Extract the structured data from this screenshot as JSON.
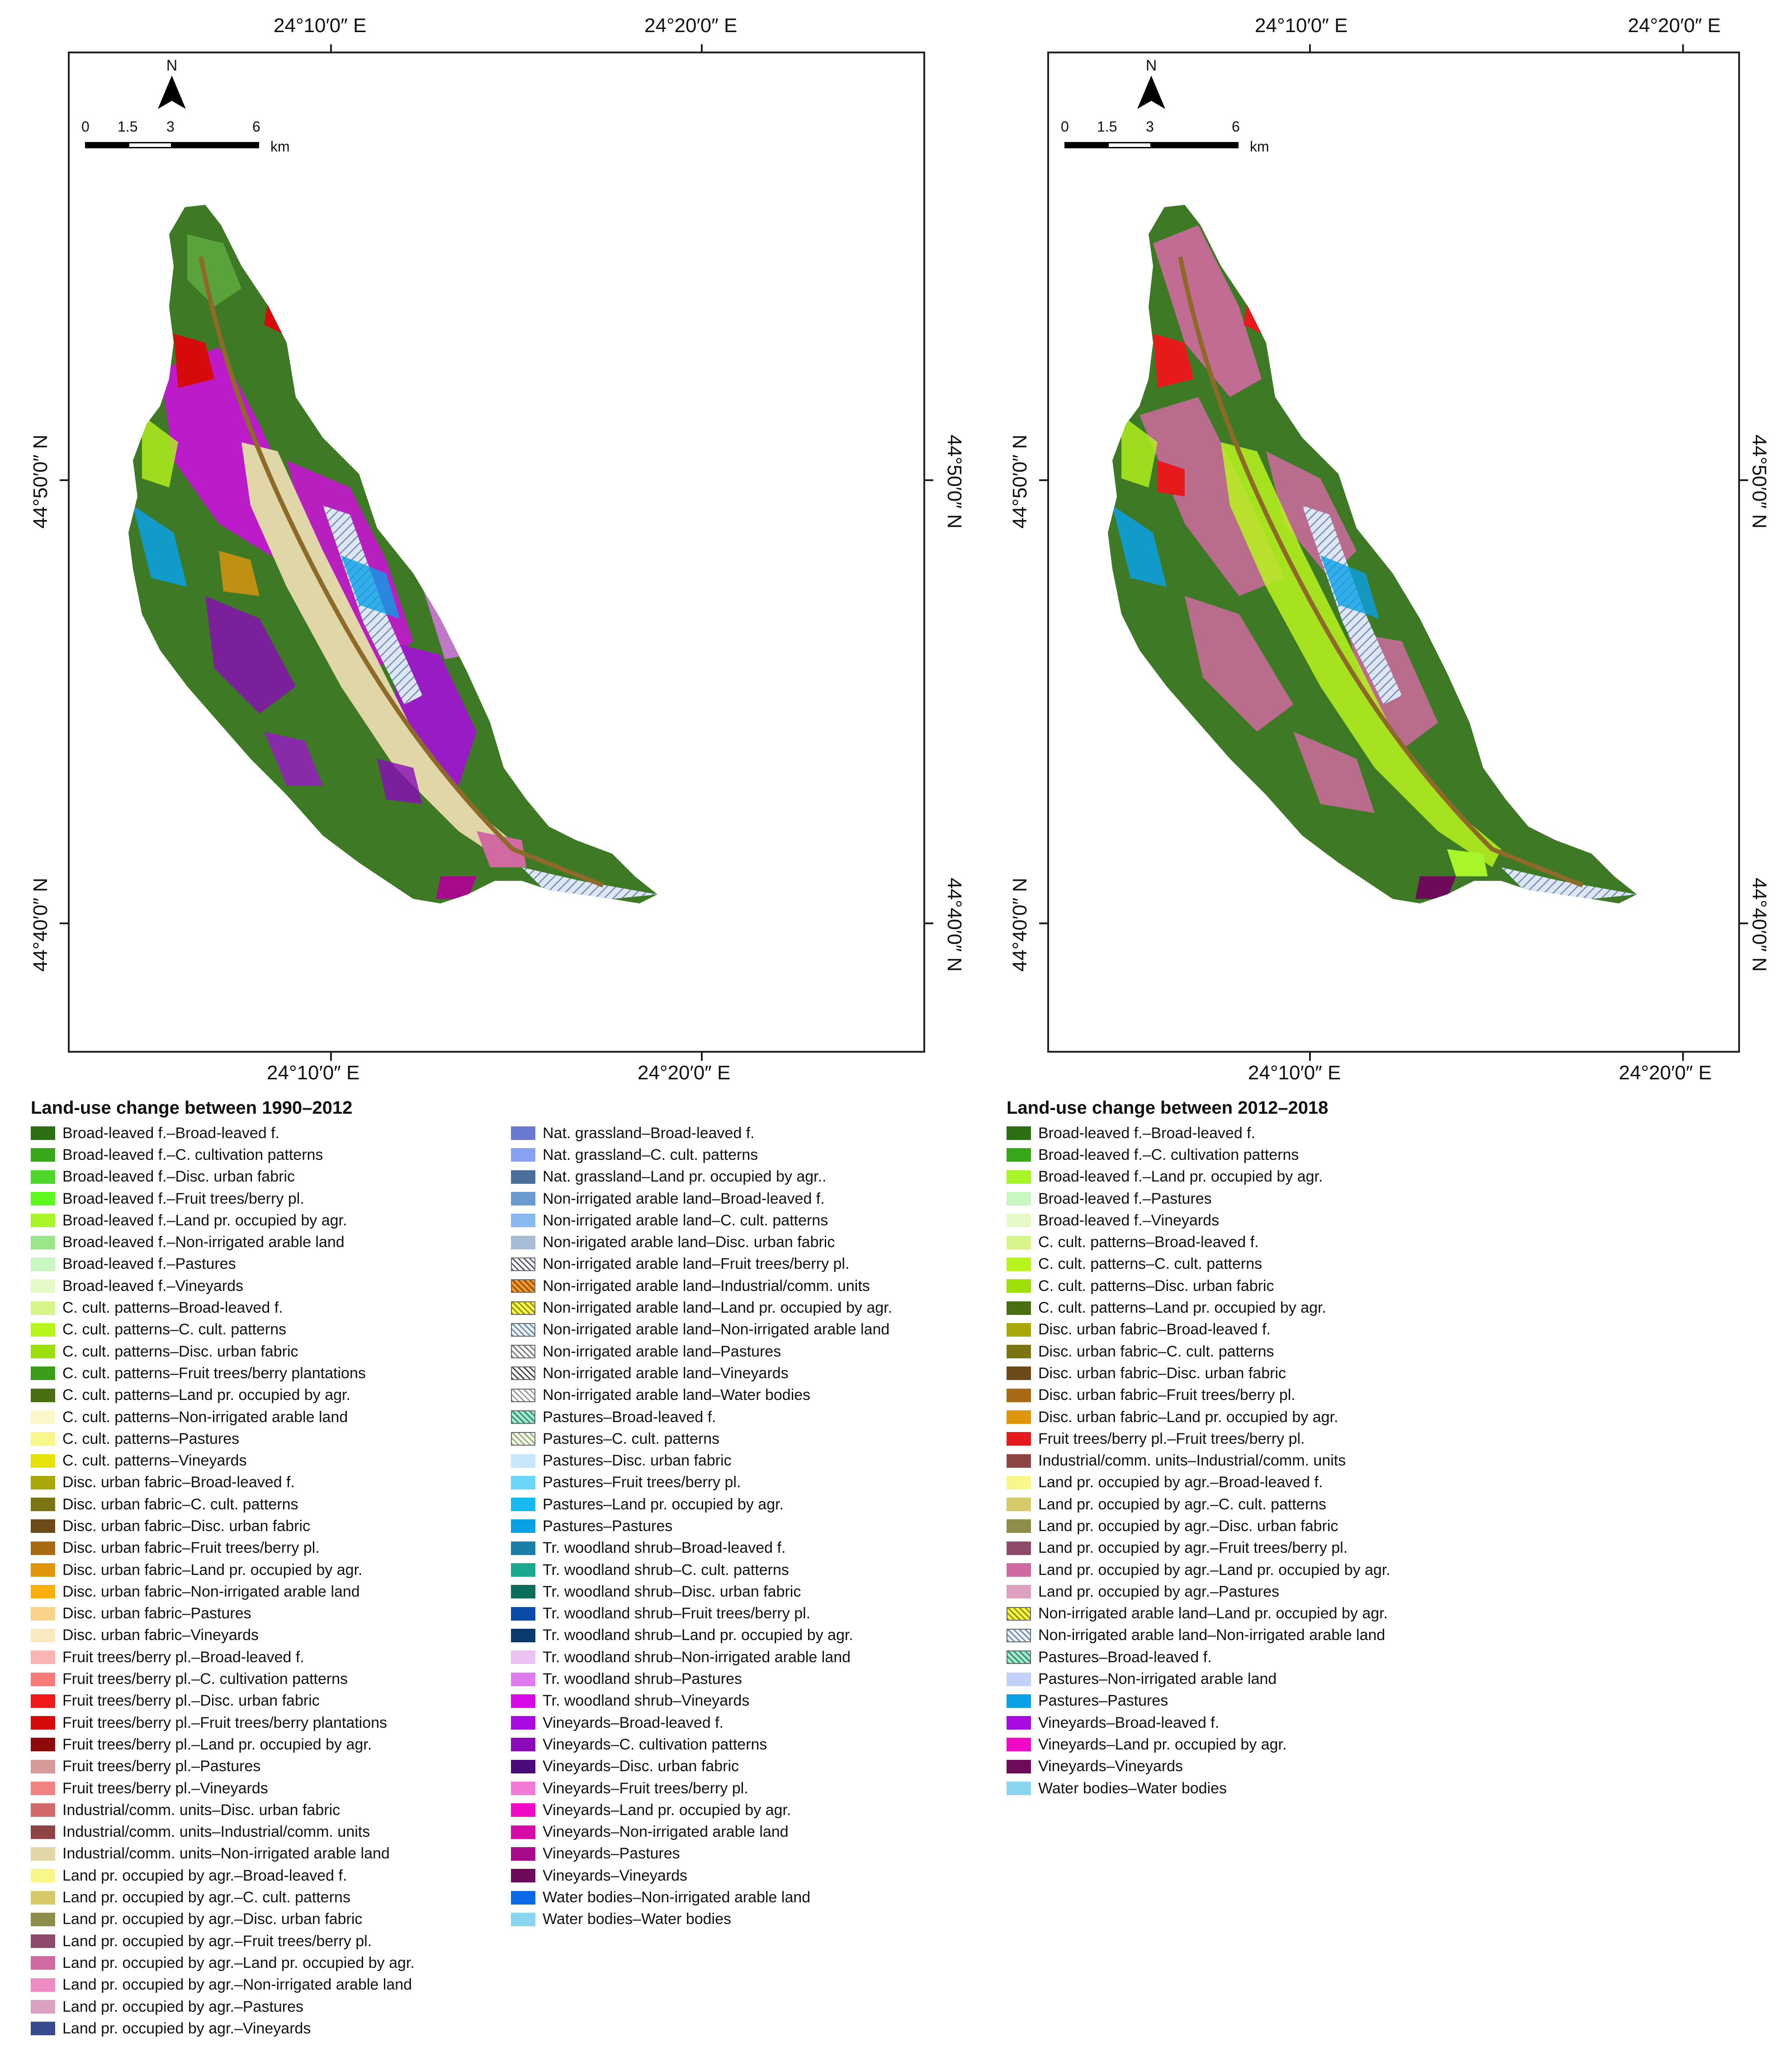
{
  "maps": [
    {
      "title": "Land-use change between 1990–2012",
      "lon_labels": [
        "24°10′0″ E",
        "24°20′0″ E"
      ],
      "lat_labels": [
        "44°50′0″ N",
        "44°40′0″ N"
      ],
      "north_label": "N",
      "scale": {
        "ticks": [
          "0",
          "1.5",
          "3",
          "6"
        ],
        "unit": "km"
      },
      "legend": [
        {
          "label": "Broad-leaved f.–Broad-leaved f.",
          "color": "#2b6e14"
        },
        {
          "label": "Broad-leaved f.–C. cultivation patterns",
          "color": "#38a81b"
        },
        {
          "label": "Broad-leaved f.–Disc. urban fabric",
          "color": "#4ed62a"
        },
        {
          "label": "Broad-leaved f.–Fruit trees/berry pl.",
          "color": "#5cfa1e"
        },
        {
          "label": "Broad-leaved f.–Land pr. occupied by agr.",
          "color": "#a8f52a"
        },
        {
          "label": "Broad-leaved f.–Non-irrigated arable land",
          "color": "#9be58a"
        },
        {
          "label": "Broad-leaved f.–Pastures",
          "color": "#c9f7c2"
        },
        {
          "label": "Broad-leaved f.–Vineyards",
          "color": "#e6fac8"
        },
        {
          "label": "C. cult. patterns–Broad-leaved f.",
          "color": "#d6f58a"
        },
        {
          "label": "C. cult. patterns–C. cult. patterns",
          "color": "#b8f51e"
        },
        {
          "label": "C. cult. patterns–Disc. urban fabric",
          "color": "#9ee00c"
        },
        {
          "label": "C. cult. patterns–Fruit trees/berry plantations",
          "color": "#3a9e1c"
        },
        {
          "label": "C. cult. patterns–Land pr. occupied by agr.",
          "color": "#4a6e10"
        },
        {
          "label": "C. cult. patterns–Non-irrigated arable land",
          "color": "#fbf7c8"
        },
        {
          "label": "C. cult. patterns–Pastures",
          "color": "#f7f78a"
        },
        {
          "label": "C. cult. patterns–Vineyards",
          "color": "#e6e20c"
        },
        {
          "label": "Disc. urban fabric–Broad-leaved f.",
          "color": "#a8a80a"
        },
        {
          "label": "Disc. urban fabric–C. cult. patterns",
          "color": "#7a7412"
        },
        {
          "label": "Disc. urban fabric–Disc. urban fabric",
          "color": "#6e4a1a"
        },
        {
          "label": "Disc. urban fabric–Fruit trees/berry pl.",
          "color": "#a86a12"
        },
        {
          "label": "Disc. urban fabric–Land pr. occupied by agr.",
          "color": "#e0960c"
        },
        {
          "label": "Disc. urban fabric–Non-irrigated arable land",
          "color": "#fab00a"
        },
        {
          "label": "Disc. urban fabric–Pastures",
          "color": "#fad28a"
        },
        {
          "label": "Disc. urban fabric–Vineyards",
          "color": "#faeac2"
        },
        {
          "label": "Fruit trees/berry pl.–Broad-leaved f.",
          "color": "#fab4b4"
        },
        {
          "label": "Fruit trees/berry pl.–C. cultivation patterns",
          "color": "#fa7a7a"
        },
        {
          "label": "Fruit trees/berry pl.–Disc. urban fabric",
          "color": "#f01a1a"
        },
        {
          "label": "Fruit trees/berry pl.–Fruit trees/berry plantations",
          "color": "#d60a0a"
        },
        {
          "label": "Fruit trees/berry pl.–Land pr. occupied by agr.",
          "color": "#8e0a0a"
        },
        {
          "label": "Fruit trees/berry pl.–Pastures",
          "color": "#d69a9a"
        },
        {
          "label": "Fruit trees/berry pl.–Vineyards",
          "color": "#f08282"
        },
        {
          "label": "Industrial/comm. units–Disc. urban fabric",
          "color": "#d26a6a"
        },
        {
          "label": "Industrial/comm. units–Industrial/comm. units",
          "color": "#8e4444"
        },
        {
          "label": "Industrial/comm. units–Non-irrigated arable land",
          "color": "#e0d6a8"
        },
        {
          "label": "Land pr. occupied by agr.–Broad-leaved f.",
          "color": "#f7f78a"
        },
        {
          "label": "Land pr. occupied by agr.–C. cult. patterns",
          "color": "#d6ca6a"
        },
        {
          "label": "Land pr. occupied by agr.–Disc. urban fabric",
          "color": "#8e8e4a"
        },
        {
          "label": "Land pr. occupied by agr.–Fruit trees/berry pl.",
          "color": "#8e4a6a"
        },
        {
          "label": "Land pr. occupied by agr.–Land pr. occupied by agr.",
          "color": "#d06aa0"
        },
        {
          "label": "Land pr. occupied by agr.–Non-irrigated arable land",
          "color": "#f08ac2"
        },
        {
          "label": "Land pr. occupied by agr.–Pastures",
          "color": "#dca0c0"
        },
        {
          "label": "Land pr. occupied by agr.–Vineyards",
          "color": "#3a4a8e"
        },
        {
          "label": "Nat. grassland–Broad-leaved f.",
          "color": "#6a78d0"
        },
        {
          "label": "Nat. grassland–C. cult. patterns",
          "color": "#8aa0f0"
        },
        {
          "label": "Nat. grassland–Land pr. occupied by agr..",
          "color": "#4a6e9a"
        },
        {
          "label": "Non-irrigated arable land–Broad-leaved f.",
          "color": "#6a9ad0"
        },
        {
          "label": "Non-irrigated arable land–C. cult. patterns",
          "color": "#8ab8f0"
        },
        {
          "label": "Non-irigated arable land–Disc. urban fabric",
          "color": "#a8bcd6"
        },
        {
          "label": "Non-irrigated arable land–Fruit trees/berry pl.",
          "color": "#ffffff",
          "hatch": "#555577"
        },
        {
          "label": "Non-irrigated arable land–Industrial/comm. units",
          "color": "#f09a2a",
          "hatch": "#8e4a0a"
        },
        {
          "label": "Non-irrigated arable land–Land pr. occupied by agr.",
          "color": "#f7f74a",
          "hatch": "#8e8e0a"
        },
        {
          "label": "Non-irrigated arable land–Non-irrigated arable land",
          "color": "#eef4fa",
          "hatch": "#6a8ab0"
        },
        {
          "label": "Non-irrigated arable land–Pastures",
          "color": "#ffffff",
          "hatch": "#777777"
        },
        {
          "label": "Non-irrigated arable land–Vineyards",
          "color": "#ffffff",
          "hatch": "#444444"
        },
        {
          "label": "Non-irrigated arable land–Water bodies",
          "color": "#ffffff",
          "hatch": "#999999"
        },
        {
          "label": "Pastures–Broad-leaved f.",
          "color": "#a8e6d0",
          "hatch": "#2a8e6a"
        },
        {
          "label": "Pastures–C. cult. patterns",
          "color": "#ffffff",
          "hatch": "#8ab06a"
        },
        {
          "label": "Pastures–Disc. urban fabric",
          "color": "#c8e6fa"
        },
        {
          "label": "Pastures–Fruit trees/berry pl.",
          "color": "#6ad6fa"
        },
        {
          "label": "Pastures–Land pr. occupied by agr.",
          "color": "#1ab8f0"
        },
        {
          "label": "Pastures–Pastures",
          "color": "#0aa0e6"
        },
        {
          "label": "Tr. woodland shrub–Broad-leaved f.",
          "color": "#1a7ea8"
        },
        {
          "label": "Tr. woodland shrub–C. cult. patterns",
          "color": "#1aa88e"
        },
        {
          "label": "Tr. woodland shrub–Disc. urban fabric",
          "color": "#0a6e5a"
        },
        {
          "label": "Tr. woodland shrub–Fruit trees/berry pl.",
          "color": "#0a4aa8"
        },
        {
          "label": "Tr. woodland shrub–Land pr. occupied by agr.",
          "color": "#0a3a6e"
        },
        {
          "label": "Tr. woodland shrub–Non-irrigated arable land",
          "color": "#ecc2f0"
        },
        {
          "label": "Tr. woodland shrub–Pastures",
          "color": "#e07af0"
        },
        {
          "label": "Tr. woodland shrub–Vineyards",
          "color": "#d60ae6"
        },
        {
          "label": "Vineyards–Broad-leaved f.",
          "color": "#a80ae0"
        },
        {
          "label": "Vineyards–C. cultivation patterns",
          "color": "#8a0ab8"
        },
        {
          "label": "Vineyards–Disc. urban fabric",
          "color": "#4a0a7a"
        },
        {
          "label": "Vineyards–Fruit trees/berry pl.",
          "color": "#f07ad6"
        },
        {
          "label": "Vineyards–Land pr. occupied by agr.",
          "color": "#f00ac8"
        },
        {
          "label": "Vineyards–Non-irrigated arable land",
          "color": "#d60aa8"
        },
        {
          "label": "Vineyards–Pastures",
          "color": "#a80a8e"
        },
        {
          "label": "Vineyards–Vineyards",
          "color": "#6e0a5a"
        },
        {
          "label": "Water bodies–Non-irrigated arable land",
          "color": "#0a6ae6"
        },
        {
          "label": "Water bodies–Water bodies",
          "color": "#8ad6f0"
        }
      ]
    },
    {
      "title": "Land-use change between 2012–2018",
      "lon_labels": [
        "24°10′0″ E",
        "24°20′0″ E"
      ],
      "lat_labels": [
        "44°50′0″ N",
        "44°40′0″ N"
      ],
      "north_label": "N",
      "scale": {
        "ticks": [
          "0",
          "1.5",
          "3",
          "6"
        ],
        "unit": "km"
      },
      "legend": [
        {
          "label": "Broad-leaved f.–Broad-leaved f.",
          "color": "#2b6e14"
        },
        {
          "label": "Broad-leaved f.–C. cultivation patterns",
          "color": "#38a81b"
        },
        {
          "label": "Broad-leaved f.–Land pr. occupied by agr.",
          "color": "#a8f52a"
        },
        {
          "label": "Broad-leaved f.–Pastures",
          "color": "#c9f7c2"
        },
        {
          "label": "Broad-leaved f.–Vineyards",
          "color": "#e6fac8"
        },
        {
          "label": "C. cult. patterns–Broad-leaved f.",
          "color": "#d6f58a"
        },
        {
          "label": "C. cult. patterns–C. cult. patterns",
          "color": "#b8f51e"
        },
        {
          "label": "C. cult. patterns–Disc. urban fabric",
          "color": "#9ee00c"
        },
        {
          "label": "C. cult. patterns–Land pr. occupied by agr.",
          "color": "#4a6e10"
        },
        {
          "label": "Disc. urban fabric–Broad-leaved f.",
          "color": "#a8a80a"
        },
        {
          "label": "Disc. urban fabric–C. cult. patterns",
          "color": "#7a7412"
        },
        {
          "label": "Disc. urban fabric–Disc. urban fabric",
          "color": "#6e4a1a"
        },
        {
          "label": "Disc. urban fabric–Fruit trees/berry pl.",
          "color": "#a86a12"
        },
        {
          "label": "Disc. urban fabric–Land pr. occupied by agr.",
          "color": "#e0960c"
        },
        {
          "label": "Fruit trees/berry pl.–Fruit trees/berry pl.",
          "color": "#e61a1a"
        },
        {
          "label": "Industrial/comm. units–Industrial/comm. units",
          "color": "#8e4444"
        },
        {
          "label": "Land pr. occupied by agr.–Broad-leaved f.",
          "color": "#f7f78a"
        },
        {
          "label": "Land pr. occupied by agr.–C. cult. patterns",
          "color": "#d6ca6a"
        },
        {
          "label": "Land pr. occupied by agr.–Disc. urban fabric",
          "color": "#8e8e4a"
        },
        {
          "label": "Land pr. occupied by agr.–Fruit trees/berry pl.",
          "color": "#8e4a6a"
        },
        {
          "label": "Land pr. occupied by agr.–Land pr. occupied by agr.",
          "color": "#d06aa0"
        },
        {
          "label": "Land pr. occupied by agr.–Pastures",
          "color": "#dca0c0"
        },
        {
          "label": "Non-irrigated arable land–Land pr. occupied by agr.",
          "color": "#f7f74a",
          "hatch": "#8e8e0a"
        },
        {
          "label": "Non-irrigated arable land–Non-irrigated arable land",
          "color": "#eef4fa",
          "hatch": "#6a8ab0"
        },
        {
          "label": "Pastures–Broad-leaved f.",
          "color": "#a8e6d0",
          "hatch": "#2a8e6a"
        },
        {
          "label": "Pastures–Non-irrigated arable land",
          "color": "#c2d0fa"
        },
        {
          "label": "Pastures–Pastures",
          "color": "#0aa0e6"
        },
        {
          "label": "Vineyards–Broad-leaved f.",
          "color": "#a80ae0"
        },
        {
          "label": "Vineyards–Land pr. occupied by agr.",
          "color": "#f00ac8"
        },
        {
          "label": "Vineyards–Vineyards",
          "color": "#6e0a5a"
        },
        {
          "label": "Water bodies–Water bodies",
          "color": "#8ad6f0"
        }
      ]
    }
  ]
}
